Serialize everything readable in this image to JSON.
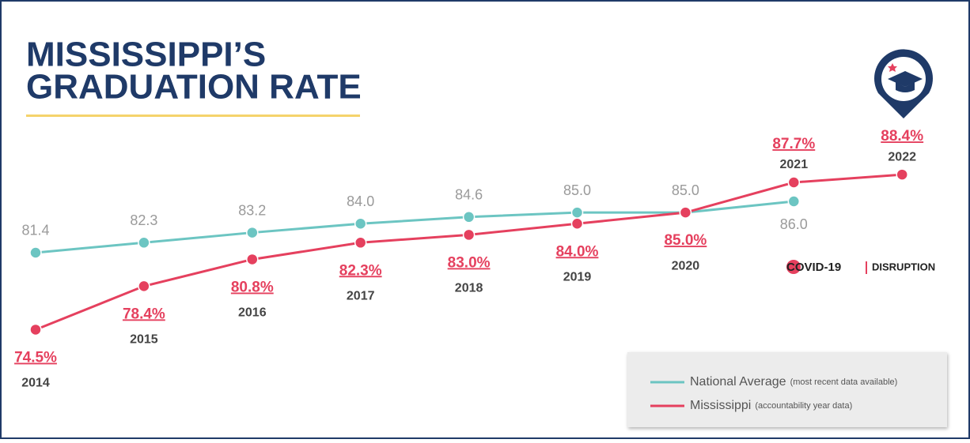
{
  "chart_data": {
    "type": "line",
    "title": [
      "MISSISSIPPI’S",
      "GRADUATION RATE"
    ],
    "categories": [
      "2014",
      "2015",
      "2016",
      "2017",
      "2018",
      "2019",
      "2020",
      "2021",
      "2022"
    ],
    "ylim": [
      72,
      90
    ],
    "series": [
      {
        "name": "National Average",
        "description": "(most recent data available)",
        "color": "#6cc5c2",
        "values": [
          81.4,
          82.3,
          83.2,
          84.0,
          84.6,
          85.0,
          85.0,
          86.0,
          null
        ],
        "value_labels": [
          "81.4",
          "82.3",
          "83.2",
          "84.0",
          "84.6",
          "85.0",
          "85.0",
          "86.0",
          null
        ]
      },
      {
        "name": "Mississippi",
        "description": "(accountability year data)",
        "color": "#e5405e",
        "values": [
          74.5,
          78.4,
          80.8,
          82.3,
          83.0,
          84.0,
          85.0,
          87.7,
          88.4
        ],
        "value_labels": [
          "74.5%",
          "78.4%",
          "80.8%",
          "82.3%",
          "83.0%",
          "84.0%",
          "85.0%",
          "87.7%",
          "88.4%"
        ]
      }
    ],
    "annotation": {
      "text": "COVID-19",
      "tag": "DISRUPTION"
    }
  }
}
